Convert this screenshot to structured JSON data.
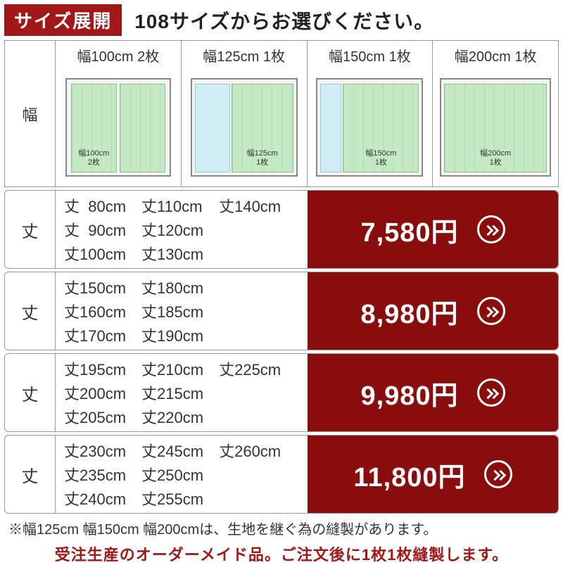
{
  "header": {
    "badge": "サイズ展開",
    "text": "108サイズからお選びください。"
  },
  "colors": {
    "accent": "#8a0d0d",
    "badge": "#a01818"
  },
  "widthRow": {
    "label": "幅",
    "columns": [
      {
        "title": "幅100cm 2枚",
        "panelLabel": "幅100cm",
        "panelSub": "2枚",
        "layout": "double"
      },
      {
        "title": "幅125cm 1枚",
        "panelLabel": "幅125cm",
        "panelSub": "1枚",
        "layout": "window-left"
      },
      {
        "title": "幅150cm 1枚",
        "panelLabel": "幅150cm",
        "panelSub": "1枚",
        "layout": "window-peek"
      },
      {
        "title": "幅200cm 1枚",
        "panelLabel": "幅200cm",
        "panelSub": "1枚",
        "layout": "single-wide"
      }
    ]
  },
  "priceRows": [
    {
      "label": "丈",
      "sizes": [
        "丈  80cm",
        "丈110cm",
        "丈140cm",
        "丈  90cm",
        "丈120cm",
        "",
        "丈100cm",
        "丈130cm",
        ""
      ],
      "cols": 3,
      "price": "7,580円"
    },
    {
      "label": "丈",
      "sizes": [
        "丈150cm",
        "丈180cm",
        "丈160cm",
        "丈185cm",
        "丈170cm",
        "丈190cm"
      ],
      "cols": 2,
      "price": "8,980円"
    },
    {
      "label": "丈",
      "sizes": [
        "丈195cm",
        "丈210cm",
        "丈225cm",
        "丈200cm",
        "丈215cm",
        "",
        "丈205cm",
        "丈220cm",
        ""
      ],
      "cols": 3,
      "price": "9,980円"
    },
    {
      "label": "丈",
      "sizes": [
        "丈230cm",
        "丈245cm",
        "丈260cm",
        "丈235cm",
        "丈250cm",
        "",
        "丈240cm",
        "丈255cm",
        ""
      ],
      "cols": 3,
      "price": "11,800円"
    }
  ],
  "notes": {
    "line1": "※幅125cm 幅150cm 幅200cmは、生地を継ぐ為の縫製があります。",
    "line2": "受注生産のオーダーメイド品。ご注文後に1枚1枚縫製します。"
  }
}
